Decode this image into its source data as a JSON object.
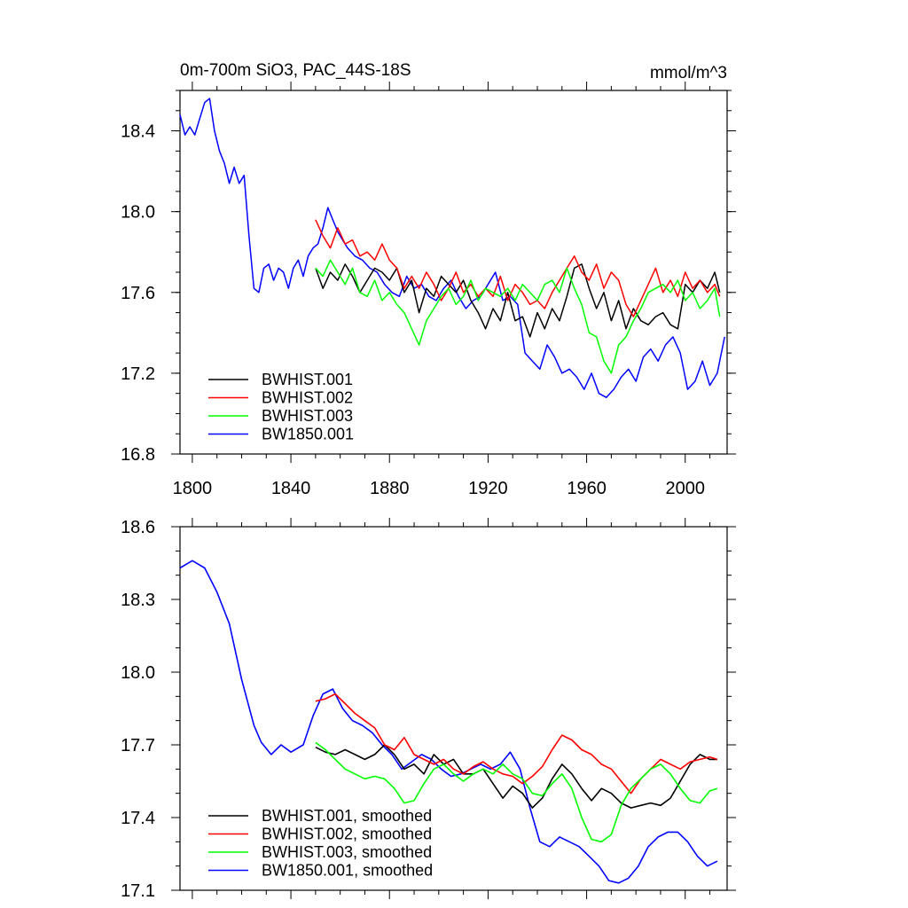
{
  "chart_data": [
    {
      "type": "line",
      "title": "0m-700m SiO3, PAC_44S-18S",
      "units": "mmol/m^3",
      "xlim": [
        1795,
        2017
      ],
      "ylim": [
        16.8,
        18.6
      ],
      "x_ticks": [
        1800,
        1840,
        1880,
        1920,
        1960,
        2000
      ],
      "y_ticks": [
        16.8,
        17.2,
        17.6,
        18.0,
        18.4
      ],
      "legend_position": "bottom-left",
      "series": [
        {
          "name": "BWHIST.001",
          "color": "#000000",
          "x": [
            1850,
            1853,
            1856,
            1859,
            1862,
            1865,
            1868,
            1871,
            1874,
            1877,
            1880,
            1883,
            1886,
            1889,
            1892,
            1895,
            1898,
            1901,
            1904,
            1907,
            1910,
            1913,
            1916,
            1919,
            1922,
            1925,
            1928,
            1931,
            1934,
            1937,
            1940,
            1943,
            1946,
            1949,
            1952,
            1955,
            1958,
            1961,
            1964,
            1967,
            1970,
            1973,
            1976,
            1979,
            1982,
            1985,
            1988,
            1991,
            1994,
            1997,
            2000,
            2003,
            2006,
            2009,
            2012,
            2014
          ],
          "y": [
            17.72,
            17.62,
            17.7,
            17.66,
            17.74,
            17.68,
            17.6,
            17.66,
            17.72,
            17.7,
            17.66,
            17.72,
            17.6,
            17.66,
            17.5,
            17.62,
            17.58,
            17.68,
            17.64,
            17.6,
            17.66,
            17.56,
            17.5,
            17.42,
            17.52,
            17.46,
            17.6,
            17.46,
            17.48,
            17.38,
            17.5,
            17.42,
            17.52,
            17.46,
            17.58,
            17.72,
            17.74,
            17.62,
            17.52,
            17.6,
            17.46,
            17.56,
            17.42,
            17.52,
            17.46,
            17.44,
            17.48,
            17.5,
            17.44,
            17.42,
            17.64,
            17.6,
            17.66,
            17.62,
            17.7,
            17.6
          ]
        },
        {
          "name": "BWHIST.002",
          "color": "#ff0000",
          "x": [
            1850,
            1853,
            1856,
            1859,
            1862,
            1865,
            1868,
            1871,
            1874,
            1877,
            1880,
            1883,
            1886,
            1889,
            1892,
            1895,
            1898,
            1901,
            1904,
            1907,
            1910,
            1913,
            1916,
            1919,
            1922,
            1925,
            1928,
            1931,
            1934,
            1937,
            1940,
            1943,
            1946,
            1949,
            1952,
            1955,
            1958,
            1961,
            1964,
            1967,
            1970,
            1973,
            1976,
            1979,
            1982,
            1985,
            1988,
            1991,
            1994,
            1997,
            2000,
            2003,
            2006,
            2009,
            2012,
            2014
          ],
          "y": [
            17.96,
            17.88,
            17.82,
            17.92,
            17.84,
            17.86,
            17.78,
            17.8,
            17.76,
            17.84,
            17.76,
            17.72,
            17.62,
            17.68,
            17.62,
            17.7,
            17.64,
            17.56,
            17.62,
            17.7,
            17.6,
            17.64,
            17.58,
            17.62,
            17.58,
            17.68,
            17.56,
            17.64,
            17.6,
            17.54,
            17.56,
            17.52,
            17.6,
            17.66,
            17.72,
            17.78,
            17.7,
            17.66,
            17.74,
            17.62,
            17.7,
            17.66,
            17.54,
            17.48,
            17.56,
            17.64,
            17.72,
            17.6,
            17.66,
            17.58,
            17.7,
            17.62,
            17.66,
            17.6,
            17.64,
            17.58
          ]
        },
        {
          "name": "BWHIST.003",
          "color": "#00ff00",
          "x": [
            1850,
            1853,
            1856,
            1859,
            1862,
            1865,
            1868,
            1871,
            1874,
            1877,
            1880,
            1883,
            1886,
            1889,
            1892,
            1895,
            1898,
            1901,
            1904,
            1907,
            1910,
            1913,
            1916,
            1919,
            1922,
            1925,
            1928,
            1931,
            1934,
            1937,
            1940,
            1943,
            1946,
            1949,
            1952,
            1955,
            1958,
            1961,
            1964,
            1967,
            1970,
            1973,
            1976,
            1979,
            1982,
            1985,
            1988,
            1991,
            1994,
            1997,
            2000,
            2003,
            2006,
            2009,
            2012,
            2014
          ],
          "y": [
            17.72,
            17.68,
            17.76,
            17.7,
            17.64,
            17.72,
            17.6,
            17.58,
            17.66,
            17.56,
            17.6,
            17.54,
            17.5,
            17.42,
            17.34,
            17.46,
            17.52,
            17.58,
            17.62,
            17.54,
            17.58,
            17.66,
            17.56,
            17.62,
            17.6,
            17.58,
            17.62,
            17.56,
            17.64,
            17.6,
            17.56,
            17.64,
            17.66,
            17.6,
            17.72,
            17.62,
            17.54,
            17.4,
            17.38,
            17.26,
            17.2,
            17.34,
            17.38,
            17.46,
            17.52,
            17.6,
            17.62,
            17.64,
            17.6,
            17.66,
            17.56,
            17.6,
            17.52,
            17.56,
            17.62,
            17.48
          ]
        },
        {
          "name": "BW1850.001",
          "color": "#0000ff",
          "x": [
            1795,
            1797,
            1799,
            1801,
            1803,
            1805,
            1807,
            1809,
            1811,
            1813,
            1815,
            1817,
            1819,
            1821,
            1823,
            1825,
            1827,
            1829,
            1831,
            1833,
            1835,
            1837,
            1839,
            1841,
            1843,
            1845,
            1847,
            1849,
            1851,
            1853,
            1855,
            1857,
            1859,
            1861,
            1863,
            1866,
            1869,
            1872,
            1875,
            1878,
            1881,
            1884,
            1887,
            1890,
            1893,
            1896,
            1899,
            1902,
            1905,
            1908,
            1911,
            1914,
            1917,
            1920,
            1923,
            1926,
            1929,
            1932,
            1935,
            1938,
            1941,
            1944,
            1947,
            1950,
            1953,
            1956,
            1959,
            1962,
            1965,
            1968,
            1971,
            1974,
            1977,
            1980,
            1983,
            1986,
            1989,
            1992,
            1995,
            1998,
            2001,
            2004,
            2007,
            2010,
            2013,
            2016
          ],
          "y": [
            18.48,
            18.38,
            18.42,
            18.38,
            18.46,
            18.54,
            18.56,
            18.4,
            18.3,
            18.24,
            18.14,
            18.22,
            18.14,
            18.18,
            17.88,
            17.62,
            17.6,
            17.72,
            17.74,
            17.66,
            17.72,
            17.7,
            17.62,
            17.72,
            17.76,
            17.68,
            17.78,
            17.82,
            17.84,
            17.92,
            18.02,
            17.96,
            17.9,
            17.86,
            17.82,
            17.78,
            17.76,
            17.72,
            17.7,
            17.64,
            17.6,
            17.58,
            17.68,
            17.62,
            17.64,
            17.58,
            17.56,
            17.62,
            17.66,
            17.58,
            17.52,
            17.56,
            17.58,
            17.64,
            17.7,
            17.56,
            17.58,
            17.54,
            17.3,
            17.26,
            17.22,
            17.34,
            17.28,
            17.2,
            17.22,
            17.18,
            17.12,
            17.2,
            17.1,
            17.08,
            17.12,
            17.18,
            17.22,
            17.16,
            17.28,
            17.32,
            17.26,
            17.34,
            17.38,
            17.3,
            17.12,
            17.16,
            17.26,
            17.14,
            17.2,
            17.38
          ]
        }
      ]
    },
    {
      "type": "line",
      "title": "",
      "xlim": [
        1795,
        2017
      ],
      "ylim": [
        17.1,
        18.6
      ],
      "y_ticks": [
        17.1,
        17.4,
        17.7,
        18.0,
        18.3,
        18.6
      ],
      "legend_position": "bottom-left",
      "series": [
        {
          "name": "BWHIST.001, smoothed",
          "color": "#000000",
          "x": [
            1850,
            1854,
            1858,
            1862,
            1866,
            1870,
            1874,
            1878,
            1882,
            1886,
            1890,
            1894,
            1898,
            1902,
            1906,
            1910,
            1914,
            1918,
            1922,
            1926,
            1930,
            1934,
            1938,
            1942,
            1946,
            1950,
            1954,
            1958,
            1962,
            1966,
            1970,
            1974,
            1978,
            1982,
            1986,
            1990,
            1994,
            1998,
            2002,
            2006,
            2010,
            2013
          ],
          "y": [
            17.69,
            17.67,
            17.66,
            17.68,
            17.66,
            17.64,
            17.66,
            17.7,
            17.66,
            17.6,
            17.62,
            17.58,
            17.66,
            17.62,
            17.64,
            17.58,
            17.58,
            17.6,
            17.54,
            17.48,
            17.53,
            17.5,
            17.44,
            17.48,
            17.56,
            17.62,
            17.58,
            17.52,
            17.47,
            17.52,
            17.5,
            17.46,
            17.44,
            17.45,
            17.46,
            17.45,
            17.48,
            17.55,
            17.62,
            17.66,
            17.64,
            17.64
          ]
        },
        {
          "name": "BWHIST.002, smoothed",
          "color": "#ff0000",
          "x": [
            1850,
            1854,
            1858,
            1862,
            1866,
            1870,
            1874,
            1878,
            1882,
            1886,
            1890,
            1894,
            1898,
            1902,
            1906,
            1910,
            1914,
            1918,
            1922,
            1926,
            1930,
            1934,
            1938,
            1942,
            1946,
            1950,
            1954,
            1958,
            1962,
            1966,
            1970,
            1974,
            1978,
            1982,
            1986,
            1990,
            1994,
            1998,
            2002,
            2006,
            2010,
            2013
          ],
          "y": [
            17.88,
            17.89,
            17.91,
            17.87,
            17.83,
            17.8,
            17.77,
            17.7,
            17.68,
            17.73,
            17.66,
            17.64,
            17.62,
            17.64,
            17.6,
            17.58,
            17.61,
            17.63,
            17.6,
            17.58,
            17.57,
            17.54,
            17.57,
            17.61,
            17.68,
            17.74,
            17.72,
            17.68,
            17.66,
            17.62,
            17.6,
            17.55,
            17.5,
            17.56,
            17.6,
            17.64,
            17.62,
            17.6,
            17.63,
            17.64,
            17.65,
            17.64
          ]
        },
        {
          "name": "BWHIST.003, smoothed",
          "color": "#00ff00",
          "x": [
            1850,
            1854,
            1858,
            1862,
            1866,
            1870,
            1874,
            1878,
            1882,
            1886,
            1890,
            1894,
            1898,
            1902,
            1906,
            1910,
            1914,
            1918,
            1922,
            1926,
            1930,
            1934,
            1938,
            1942,
            1946,
            1950,
            1954,
            1958,
            1962,
            1966,
            1970,
            1974,
            1978,
            1982,
            1986,
            1990,
            1994,
            1998,
            2002,
            2006,
            2010,
            2013
          ],
          "y": [
            17.71,
            17.68,
            17.64,
            17.6,
            17.58,
            17.56,
            17.57,
            17.56,
            17.52,
            17.46,
            17.47,
            17.54,
            17.6,
            17.62,
            17.58,
            17.55,
            17.58,
            17.6,
            17.58,
            17.62,
            17.58,
            17.56,
            17.5,
            17.49,
            17.54,
            17.58,
            17.52,
            17.4,
            17.31,
            17.3,
            17.33,
            17.45,
            17.52,
            17.56,
            17.6,
            17.62,
            17.58,
            17.52,
            17.47,
            17.46,
            17.51,
            17.52
          ]
        },
        {
          "name": "BW1850.001, smoothed",
          "color": "#0000ff",
          "x": [
            1795,
            1800,
            1805,
            1810,
            1815,
            1820,
            1825,
            1828,
            1832,
            1836,
            1840,
            1845,
            1849,
            1853,
            1857,
            1861,
            1865,
            1869,
            1873,
            1877,
            1881,
            1885,
            1889,
            1893,
            1897,
            1901,
            1905,
            1909,
            1913,
            1917,
            1921,
            1925,
            1929,
            1933,
            1937,
            1941,
            1945,
            1949,
            1953,
            1957,
            1961,
            1965,
            1969,
            1973,
            1977,
            1981,
            1985,
            1989,
            1993,
            1997,
            2001,
            2005,
            2009,
            2013
          ],
          "y": [
            18.43,
            18.46,
            18.43,
            18.33,
            18.2,
            17.97,
            17.78,
            17.71,
            17.66,
            17.7,
            17.67,
            17.7,
            17.82,
            17.91,
            17.93,
            17.85,
            17.8,
            17.78,
            17.75,
            17.7,
            17.66,
            17.6,
            17.63,
            17.66,
            17.64,
            17.6,
            17.57,
            17.58,
            17.6,
            17.62,
            17.6,
            17.62,
            17.67,
            17.6,
            17.44,
            17.3,
            17.28,
            17.32,
            17.3,
            17.28,
            17.24,
            17.2,
            17.14,
            17.13,
            17.15,
            17.2,
            17.28,
            17.32,
            17.34,
            17.34,
            17.3,
            17.24,
            17.2,
            17.22
          ]
        }
      ]
    }
  ]
}
